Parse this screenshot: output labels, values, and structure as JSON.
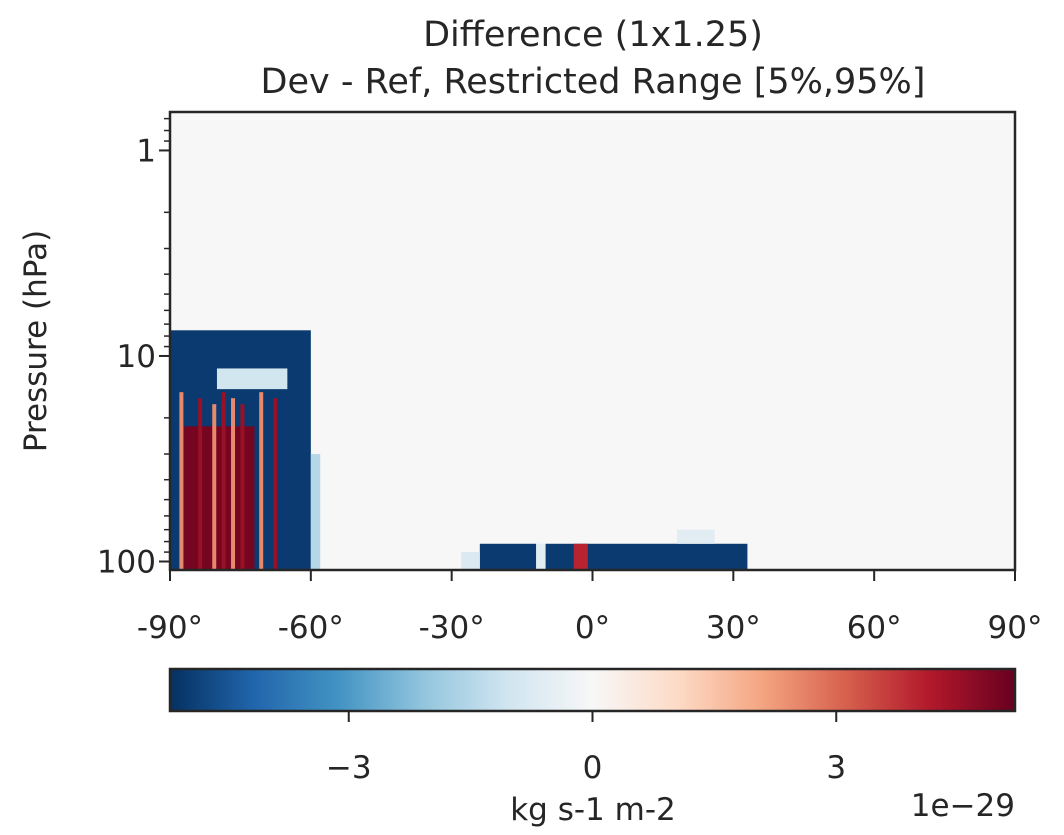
{
  "chart_data": [
    {
      "type": "heatmap",
      "title": "Difference (1x1.25)",
      "subtitle": "Dev - Ref, Restricted Range [5%,95%]",
      "xlabel": "",
      "ylabel": "Pressure (hPa)",
      "x_axis": {
        "min": -90,
        "max": 90,
        "ticks": [
          -90,
          -60,
          -30,
          0,
          30,
          60,
          90
        ],
        "tick_labels": [
          "-90°",
          "-60°",
          "-30°",
          "0°",
          "30°",
          "60°",
          "90°"
        ]
      },
      "y_axis": {
        "scale": "log",
        "inverted": true,
        "min": 0.65,
        "max": 110,
        "ticks": [
          1,
          10,
          100
        ],
        "tick_labels": [
          "1",
          "10",
          "100"
        ]
      },
      "background_value": 0,
      "blocks": [
        {
          "lat": [
            -90,
            -60
          ],
          "pres": [
            7.5,
            110
          ],
          "value": -5
        },
        {
          "lat": [
            -80,
            -65
          ],
          "pres": [
            11.5,
            14.5
          ],
          "value": -1
        },
        {
          "lat": [
            -60,
            -58
          ],
          "pres": [
            30,
            110
          ],
          "value": -1.5
        },
        {
          "lat": [
            -87,
            -72
          ],
          "pres": [
            22,
            110
          ],
          "value": 5
        },
        {
          "lat": [
            -24,
            -12
          ],
          "pres": [
            82,
            110
          ],
          "value": -5
        },
        {
          "lat": [
            -10,
            33
          ],
          "pres": [
            82,
            110
          ],
          "value": -5
        },
        {
          "lat": [
            -4,
            -1
          ],
          "pres": [
            82,
            110
          ],
          "value": 4
        },
        {
          "lat": [
            -12,
            -10
          ],
          "pres": [
            82,
            110
          ],
          "value": -0.6
        },
        {
          "lat": [
            -28,
            -24
          ],
          "pres": [
            90,
            110
          ],
          "value": -0.8
        },
        {
          "lat": [
            18,
            26
          ],
          "pres": [
            70,
            82
          ],
          "value": -0.6
        }
      ],
      "red_streaks_lat": [
        -88,
        -84,
        -81,
        -79,
        -77,
        -75,
        -71,
        -68
      ],
      "colorbar": {
        "label": "kg s-1 m-2",
        "offset_text": "1e−29",
        "min": -5.2,
        "max": 5.2,
        "ticks": [
          -3,
          0,
          3
        ],
        "tick_labels": [
          "−3",
          "0",
          "3"
        ],
        "colormap": "RdBu_r",
        "colors": [
          "#053061",
          "#2166ac",
          "#4393c3",
          "#92c5de",
          "#d1e5f0",
          "#f7f7f7",
          "#fddbc7",
          "#f4a582",
          "#d6604d",
          "#b2182b",
          "#67001f"
        ]
      }
    }
  ]
}
